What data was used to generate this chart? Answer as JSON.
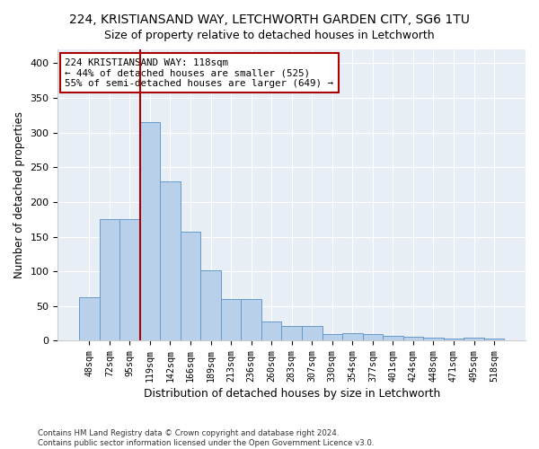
{
  "title1": "224, KRISTIANSAND WAY, LETCHWORTH GARDEN CITY, SG6 1TU",
  "title2": "Size of property relative to detached houses in Letchworth",
  "xlabel": "Distribution of detached houses by size in Letchworth",
  "ylabel": "Number of detached properties",
  "categories": [
    "48sqm",
    "72sqm",
    "95sqm",
    "119sqm",
    "142sqm",
    "166sqm",
    "189sqm",
    "213sqm",
    "236sqm",
    "260sqm",
    "283sqm",
    "307sqm",
    "330sqm",
    "354sqm",
    "377sqm",
    "401sqm",
    "424sqm",
    "448sqm",
    "471sqm",
    "495sqm",
    "518sqm"
  ],
  "values": [
    62,
    175,
    175,
    315,
    230,
    157,
    102,
    60,
    60,
    27,
    21,
    21,
    10,
    11,
    10,
    7,
    5,
    4,
    3,
    4,
    3
  ],
  "bar_color": "#b8d0ea",
  "bar_edge_color": "#6699cc",
  "vline_x": 2.5,
  "vline_color": "#aa0000",
  "annotation_text": "224 KRISTIANSAND WAY: 118sqm\n← 44% of detached houses are smaller (525)\n55% of semi-detached houses are larger (649) →",
  "annotation_box_color": "#ffffff",
  "annotation_box_edge": "#aa0000",
  "ylim": [
    0,
    420
  ],
  "yticks": [
    0,
    50,
    100,
    150,
    200,
    250,
    300,
    350,
    400
  ],
  "footer1": "Contains HM Land Registry data © Crown copyright and database right 2024.",
  "footer2": "Contains public sector information licensed under the Open Government Licence v3.0.",
  "bg_color": "#e8eef6",
  "fig_bg_color": "#ffffff"
}
